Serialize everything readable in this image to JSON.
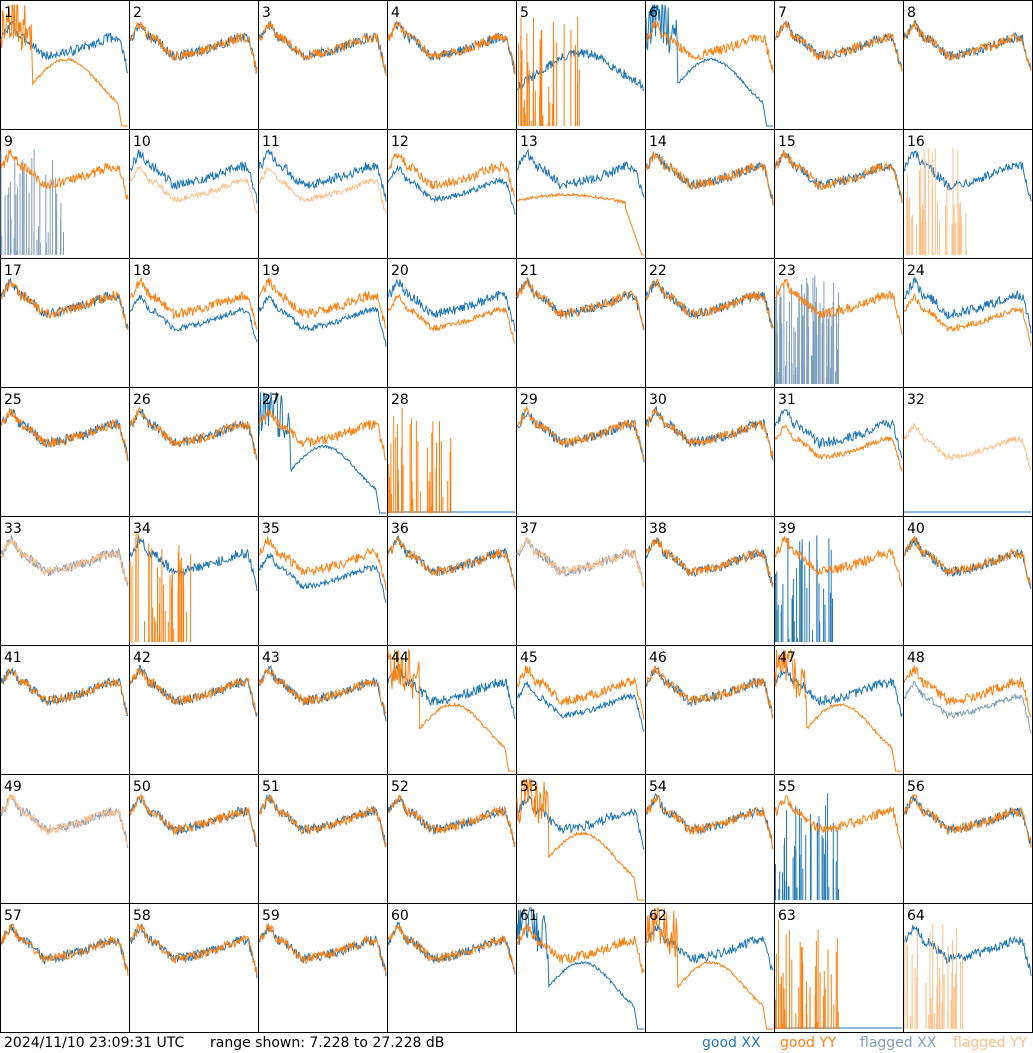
{
  "footer": {
    "timestamp": "2024/11/10 23:09:31 UTC",
    "range_text": "range shown: 7.228 to 27.228 dB"
  },
  "legend": [
    {
      "label": "good XX",
      "color": "#1f77b4"
    },
    {
      "label": "good YY",
      "color": "#ff7f0e"
    },
    {
      "label": "flagged XX",
      "color": "#7f9fbf"
    },
    {
      "label": "flagged YY",
      "color": "#ffbf87"
    }
  ],
  "chart_data": {
    "type": "line",
    "layout": "8x8 grid of small multiples",
    "ylim": [
      7.228,
      27.228
    ],
    "units": "dB",
    "series_names": [
      "good XX",
      "good YY",
      "flagged XX",
      "flagged YY"
    ],
    "panels": [
      {
        "id": "1",
        "xx": "normal",
        "yy": "dip",
        "flagged": []
      },
      {
        "id": "2",
        "xx": "normal",
        "yy": "normal",
        "flagged": []
      },
      {
        "id": "3",
        "xx": "normal",
        "yy": "normal",
        "flagged": []
      },
      {
        "id": "4",
        "xx": "normal",
        "yy": "normal",
        "flagged": []
      },
      {
        "id": "5",
        "xx": "low_bowl",
        "yy": "spikes",
        "flagged": []
      },
      {
        "id": "6",
        "xx": "dip",
        "yy": "normal",
        "flagged": []
      },
      {
        "id": "7",
        "xx": "normal",
        "yy": "normal",
        "flagged": []
      },
      {
        "id": "8",
        "xx": "normal",
        "yy": "normal",
        "flagged": []
      },
      {
        "id": "9",
        "xx": "spikes",
        "yy": "normal",
        "flagged": [
          "xx"
        ]
      },
      {
        "id": "10",
        "xx": "normal",
        "yy": "low",
        "flagged": [
          "yy"
        ]
      },
      {
        "id": "11",
        "xx": "normal",
        "yy": "low",
        "flagged": [
          "yy"
        ]
      },
      {
        "id": "12",
        "xx": "low",
        "yy": "normal",
        "flagged": []
      },
      {
        "id": "13",
        "xx": "normal",
        "yy": "dropoff",
        "flagged": []
      },
      {
        "id": "14",
        "xx": "normal",
        "yy": "normal",
        "flagged": []
      },
      {
        "id": "15",
        "xx": "normal",
        "yy": "normal",
        "flagged": []
      },
      {
        "id": "16",
        "xx": "normal",
        "yy": "spikes",
        "flagged": [
          "yy"
        ]
      },
      {
        "id": "17",
        "xx": "normal",
        "yy": "normal",
        "flagged": []
      },
      {
        "id": "18",
        "xx": "low",
        "yy": "normal",
        "flagged": []
      },
      {
        "id": "19",
        "xx": "low",
        "yy": "normal",
        "flagged": []
      },
      {
        "id": "20",
        "xx": "normal",
        "yy": "low",
        "flagged": []
      },
      {
        "id": "21",
        "xx": "normal",
        "yy": "normal",
        "flagged": []
      },
      {
        "id": "22",
        "xx": "normal",
        "yy": "normal",
        "flagged": []
      },
      {
        "id": "23",
        "xx": "noise",
        "yy": "normal",
        "flagged": [
          "xx"
        ]
      },
      {
        "id": "24",
        "xx": "normal",
        "yy": "low",
        "flagged": []
      },
      {
        "id": "25",
        "xx": "normal",
        "yy": "normal",
        "flagged": []
      },
      {
        "id": "26",
        "xx": "normal",
        "yy": "normal",
        "flagged": []
      },
      {
        "id": "27",
        "xx": "dip",
        "yy": "normal",
        "flagged": []
      },
      {
        "id": "28",
        "xx": "flat",
        "yy": "spikes",
        "flagged": []
      },
      {
        "id": "29",
        "xx": "normal",
        "yy": "normal",
        "flagged": []
      },
      {
        "id": "30",
        "xx": "normal",
        "yy": "normal",
        "flagged": []
      },
      {
        "id": "31",
        "xx": "normal",
        "yy": "low",
        "flagged": []
      },
      {
        "id": "32",
        "xx": "flat",
        "yy": "low",
        "flagged": [
          "yy"
        ]
      },
      {
        "id": "33",
        "xx": "normal",
        "yy": "normal",
        "flagged": [
          "xx",
          "yy"
        ]
      },
      {
        "id": "34",
        "xx": "normal",
        "yy": "spikes",
        "flagged": []
      },
      {
        "id": "35",
        "xx": "low",
        "yy": "normal",
        "flagged": []
      },
      {
        "id": "36",
        "xx": "normal",
        "yy": "normal",
        "flagged": []
      },
      {
        "id": "37",
        "xx": "normal",
        "yy": "normal",
        "flagged": [
          "xx",
          "yy"
        ]
      },
      {
        "id": "38",
        "xx": "normal",
        "yy": "normal",
        "flagged": []
      },
      {
        "id": "39",
        "xx": "spikes",
        "yy": "normal",
        "flagged": []
      },
      {
        "id": "40",
        "xx": "normal",
        "yy": "normal",
        "flagged": []
      },
      {
        "id": "41",
        "xx": "normal",
        "yy": "normal",
        "flagged": []
      },
      {
        "id": "42",
        "xx": "normal",
        "yy": "normal",
        "flagged": []
      },
      {
        "id": "43",
        "xx": "normal",
        "yy": "normal",
        "flagged": []
      },
      {
        "id": "44",
        "xx": "normal",
        "yy": "dip",
        "flagged": []
      },
      {
        "id": "45",
        "xx": "low",
        "yy": "normal",
        "flagged": []
      },
      {
        "id": "46",
        "xx": "normal",
        "yy": "normal",
        "flagged": []
      },
      {
        "id": "47",
        "xx": "normal",
        "yy": "dip",
        "flagged": []
      },
      {
        "id": "48",
        "xx": "low",
        "yy": "normal",
        "flagged": [
          "xx"
        ]
      },
      {
        "id": "49",
        "xx": "normal",
        "yy": "normal",
        "flagged": [
          "xx",
          "yy"
        ]
      },
      {
        "id": "50",
        "xx": "normal",
        "yy": "normal",
        "flagged": []
      },
      {
        "id": "51",
        "xx": "normal",
        "yy": "normal",
        "flagged": []
      },
      {
        "id": "52",
        "xx": "normal",
        "yy": "normal",
        "flagged": []
      },
      {
        "id": "53",
        "xx": "normal",
        "yy": "dip",
        "flagged": []
      },
      {
        "id": "54",
        "xx": "normal",
        "yy": "normal",
        "flagged": []
      },
      {
        "id": "55",
        "xx": "spikes",
        "yy": "normal",
        "flagged": []
      },
      {
        "id": "56",
        "xx": "normal",
        "yy": "normal",
        "flagged": []
      },
      {
        "id": "57",
        "xx": "normal",
        "yy": "normal",
        "flagged": []
      },
      {
        "id": "58",
        "xx": "normal",
        "yy": "normal",
        "flagged": []
      },
      {
        "id": "59",
        "xx": "normal",
        "yy": "normal",
        "flagged": []
      },
      {
        "id": "60",
        "xx": "normal",
        "yy": "normal",
        "flagged": []
      },
      {
        "id": "61",
        "xx": "dip",
        "yy": "normal",
        "flagged": []
      },
      {
        "id": "62",
        "xx": "normal",
        "yy": "dip",
        "flagged": []
      },
      {
        "id": "63",
        "xx": "flat",
        "yy": "spikes",
        "flagged": []
      },
      {
        "id": "64",
        "xx": "normal",
        "yy": "spikes",
        "flagged": [
          "yy"
        ]
      }
    ]
  }
}
